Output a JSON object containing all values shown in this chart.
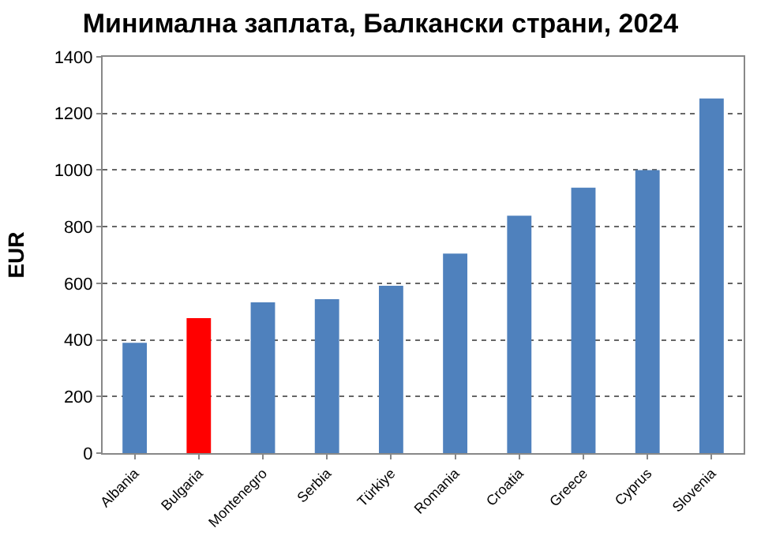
{
  "chart_data": {
    "type": "bar",
    "title": "Минимална заплата, Балкански страни, 2024",
    "ylabel": "EUR",
    "categories": [
      "Albania",
      "Bulgaria",
      "Montenegro",
      "Serbia",
      "Türkiye",
      "Romania",
      "Croatia",
      "Greece",
      "Cyprus",
      "Slovenia"
    ],
    "values": [
      390,
      477,
      533,
      544,
      591,
      705,
      839,
      938,
      1000,
      1253
    ],
    "colors": [
      "#4f81bd",
      "#ff0000",
      "#4f81bd",
      "#4f81bd",
      "#4f81bd",
      "#4f81bd",
      "#4f81bd",
      "#4f81bd",
      "#4f81bd",
      "#4f81bd"
    ],
    "ylim": [
      0,
      1400
    ],
    "yticks": [
      0,
      200,
      400,
      600,
      800,
      1000,
      1200,
      1400
    ],
    "grid": "y"
  }
}
